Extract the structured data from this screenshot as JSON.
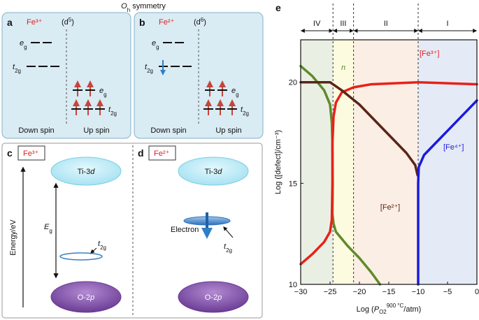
{
  "title": {
    "base": "O",
    "sub": "h",
    "rest": " symmetry"
  },
  "panels": {
    "a": {
      "letter": "a",
      "ion": "Fe³⁺",
      "config": {
        "open": "(d",
        "sup": "5",
        "close": ")"
      },
      "eg_left": {
        "base": "e",
        "sub": "g"
      },
      "t2g_left": {
        "base": "t",
        "sub": "2g"
      },
      "eg_right": {
        "base": "e",
        "sub": "g"
      },
      "t2g_right": {
        "base": "t",
        "sub": "2g"
      },
      "down": "Down spin",
      "up": "Up spin"
    },
    "b": {
      "letter": "b",
      "ion": "Fe²⁺",
      "config": {
        "open": "(d",
        "sup": "6",
        "close": ")"
      },
      "eg_left": {
        "base": "e",
        "sub": "g"
      },
      "t2g_left": {
        "base": "t",
        "sub": "2g"
      },
      "eg_right": {
        "base": "e",
        "sub": "g"
      },
      "t2g_right": {
        "base": "t",
        "sub": "2g"
      },
      "down": "Down spin",
      "up": "Up spin"
    },
    "c": {
      "letter": "c",
      "ion": "Fe³⁺",
      "upper": {
        "base": "Ti-3",
        "it": "d"
      },
      "lower": {
        "base": "O-2",
        "it": "p"
      },
      "energy": "Energy/eV",
      "gap": {
        "base": "E",
        "sub": "g"
      },
      "t2g": {
        "base": "t",
        "sub": "2g"
      }
    },
    "d": {
      "letter": "d",
      "ion": "Fe²⁺",
      "upper": {
        "base": "Ti-3",
        "it": "d"
      },
      "lower": {
        "base": "O-2",
        "it": "p"
      },
      "electron": "Electron",
      "t2g": {
        "base": "t",
        "sub": "2g"
      }
    }
  },
  "chart_data": {
    "type": "line",
    "letter": "e",
    "x_label": {
      "prefix": "Log (",
      "P": "P",
      "sub": "O2",
      "sup": "900 °C",
      "suffix": "/atm)"
    },
    "y_label": "Log ([defect]/cm⁻³)",
    "xlim": [
      -30,
      0
    ],
    "ylim": [
      10,
      22.1
    ],
    "xticks": [
      {
        "value": -30,
        "label": "−30"
      },
      {
        "value": -25,
        "label": "−25"
      },
      {
        "value": -20,
        "label": "−20"
      },
      {
        "value": -15,
        "label": "−15"
      },
      {
        "value": -10,
        "label": "−10"
      },
      {
        "value": -5,
        "label": "−5"
      },
      0
    ],
    "yticks": [
      10,
      15,
      20
    ],
    "regions": [
      {
        "label": "IV",
        "from": -30,
        "to": -24.5,
        "color": "#e9f0e3"
      },
      {
        "label": "III",
        "from": -24.5,
        "to": -21,
        "color": "#fdfbdf"
      },
      {
        "label": "II",
        "from": -21,
        "to": -10,
        "color": "#fbeee4"
      },
      {
        "label": "I",
        "from": -10,
        "to": 0,
        "color": "#e5ebf6"
      }
    ],
    "series": [
      {
        "name": "n",
        "color": "#5f8a2a",
        "x": [
          -30,
          -28,
          -26,
          -25,
          -24.7,
          -24.6,
          -24.55,
          -24.6,
          -24.4,
          -24,
          -22,
          -20,
          -18,
          -16.5
        ],
        "values": [
          20.8,
          20.3,
          19.6,
          18.9,
          18.0,
          17,
          15,
          13.5,
          13.0,
          12.6,
          11.9,
          11.3,
          10.6,
          10
        ]
      },
      {
        "name": "[Fe³⁺]",
        "color": "#e8211b",
        "x": [
          -30,
          -28,
          -26,
          -25,
          -24.7,
          -24.6,
          -24.6,
          -24.4,
          -24,
          -23,
          -21,
          -18,
          -10,
          0
        ],
        "values": [
          11.0,
          11.5,
          12.1,
          12.6,
          13.2,
          15,
          17,
          18.3,
          19.0,
          19.5,
          19.75,
          19.9,
          20.0,
          19.9
        ]
      },
      {
        "name": "[Fe²⁺]",
        "color": "#5b2418",
        "x": [
          -30,
          -25,
          -23,
          -20,
          -17,
          -14,
          -12,
          -10.5,
          -10.1
        ],
        "values": [
          20,
          20,
          19.6,
          18.9,
          18.0,
          17.1,
          16.5,
          15.9,
          15.4
        ]
      },
      {
        "name": "[Fe⁴⁺]",
        "color": "#1a1ae0",
        "x": [
          -10,
          -10,
          -10,
          -9.9,
          -9,
          -7,
          -5,
          -3,
          -1,
          0
        ],
        "values": [
          10,
          13,
          15,
          15.8,
          16.4,
          17.0,
          17.6,
          18.2,
          18.8,
          19.1
        ]
      }
    ]
  }
}
